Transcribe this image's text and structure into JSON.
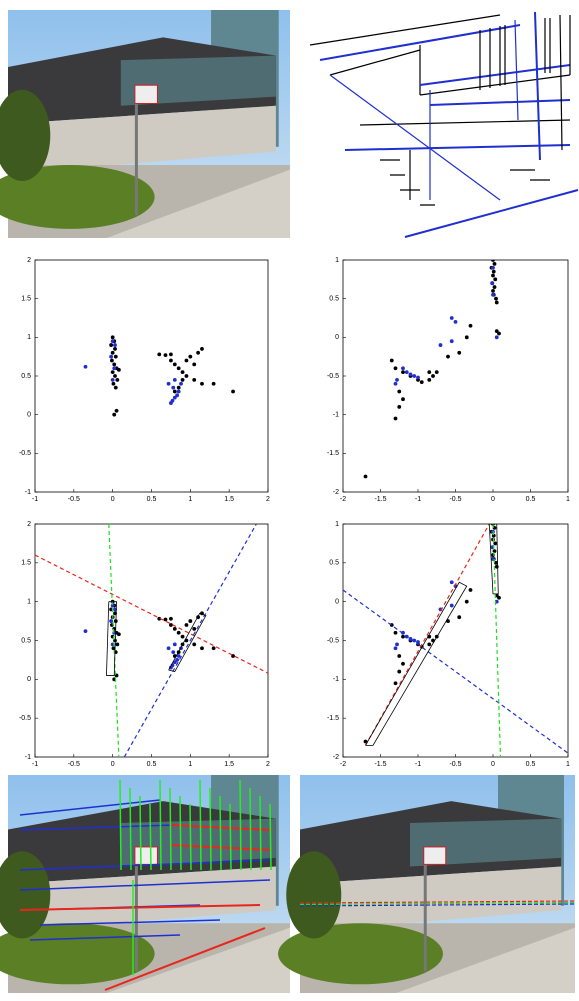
{
  "chart_data": [
    {
      "type": "scatter",
      "xlim": [
        -1,
        2
      ],
      "ylim": [
        -1,
        2
      ],
      "xticks": [
        -1,
        -0.5,
        0,
        0.5,
        1,
        1.5,
        2
      ],
      "yticks": [
        -1,
        -0.5,
        0,
        0.5,
        1,
        1.5,
        2
      ],
      "series": [
        {
          "color": "#000000",
          "mode": "markers",
          "x": [
            0,
            0.02,
            -0.02,
            0.03,
            0,
            0.04,
            -0.01,
            0.02,
            0.05,
            0,
            0.03,
            0.06,
            0.01,
            0.04,
            0.08,
            0.05,
            0.02,
            0.6,
            0.68,
            0.75,
            0.8,
            0.85,
            0.9,
            0.95,
            1.05,
            1.15,
            1.55,
            0.75,
            0.95,
            1.0,
            1.1,
            1.15,
            1.05,
            0.8,
            0.85,
            0.9,
            1.3
          ],
          "y": [
            1.0,
            0.95,
            0.9,
            0.85,
            0.8,
            0.75,
            0.7,
            0.65,
            0.6,
            0.55,
            0.5,
            0.45,
            0.4,
            0.35,
            0.58,
            0.05,
            0.0,
            0.78,
            0.77,
            0.7,
            0.65,
            0.6,
            0.55,
            0.5,
            0.45,
            0.4,
            0.3,
            0.78,
            0.7,
            0.75,
            0.8,
            0.85,
            0.65,
            0.3,
            0.35,
            0.45,
            0.4
          ]
        },
        {
          "color": "#1f2fd0",
          "mode": "markers",
          "x": [
            -0.35,
            0,
            -0.02,
            0.02,
            0,
            0.03,
            0.77,
            0.8,
            0.83,
            0.85,
            0.75,
            0.78,
            0.88,
            0.72,
            0.8
          ],
          "y": [
            0.62,
            0.95,
            0.75,
            0.6,
            0.45,
            0.9,
            0.18,
            0.22,
            0.25,
            0.3,
            0.15,
            0.35,
            0.4,
            0.4,
            0.45
          ]
        }
      ]
    },
    {
      "type": "scatter",
      "xlim": [
        -2,
        1
      ],
      "ylim": [
        -2,
        1
      ],
      "xticks": [
        -2,
        -1.5,
        -1,
        -0.5,
        0,
        0.5,
        1
      ],
      "yticks": [
        -2,
        -1.5,
        -1,
        -0.5,
        0,
        0.5,
        1
      ],
      "series": [
        {
          "color": "#000000",
          "mode": "markers",
          "x": [
            0,
            0.02,
            -0.02,
            0.01,
            0,
            0.03,
            -0.01,
            0.02,
            0,
            0.01,
            0.04,
            0.05,
            0.08,
            0.05,
            -0.3,
            -0.35,
            -0.45,
            -0.6,
            -0.75,
            -0.8,
            -0.85,
            -0.95,
            -1.0,
            -1.1,
            -1.2,
            -1.3,
            -1.35,
            -1.25,
            -1.2,
            -1.25,
            -1.3,
            -1.7,
            -0.85
          ],
          "y": [
            1.0,
            0.95,
            0.9,
            0.85,
            0.8,
            0.75,
            0.7,
            0.65,
            0.6,
            0.55,
            0.5,
            0.45,
            0.05,
            0.08,
            0.15,
            0.0,
            -0.2,
            -0.25,
            -0.45,
            -0.5,
            -0.55,
            -0.58,
            -0.55,
            -0.5,
            -0.45,
            -0.4,
            -0.3,
            -0.7,
            -0.8,
            -0.9,
            -1.05,
            -1.8,
            -0.45
          ]
        },
        {
          "color": "#1f2fd0",
          "mode": "markers",
          "x": [
            0,
            -0.01,
            0,
            -0.5,
            -0.55,
            -0.7,
            -1.15,
            -1.1,
            -1.05,
            -1.0,
            -1.2,
            -1.3,
            -1.28,
            -0.55,
            0.05
          ],
          "y": [
            0.9,
            0.7,
            0.55,
            0.2,
            0.25,
            -0.1,
            -0.45,
            -0.48,
            -0.5,
            -0.52,
            -0.4,
            -0.6,
            -0.55,
            -0.05,
            0.0
          ]
        }
      ]
    },
    {
      "type": "scatter",
      "xlim": [
        -1,
        2
      ],
      "ylim": [
        -1,
        2
      ],
      "xticks": [
        -1,
        -0.5,
        0,
        0.5,
        1,
        1.5,
        2
      ],
      "yticks": [
        -1,
        -0.5,
        0,
        0.5,
        1,
        1.5,
        2
      ],
      "series": [
        {
          "color": "#000000",
          "mode": "markers",
          "x": [
            0,
            0.02,
            -0.02,
            0.03,
            0,
            0.04,
            -0.01,
            0.02,
            0.05,
            0,
            0.03,
            0.06,
            0.01,
            0.04,
            0.08,
            0.05,
            0.02,
            0.6,
            0.68,
            0.75,
            0.8,
            0.85,
            0.9,
            0.95,
            1.05,
            1.15,
            1.55,
            0.75,
            0.95,
            1.0,
            1.1,
            1.15,
            1.05,
            0.8,
            0.85,
            0.9,
            1.3
          ],
          "y": [
            1.0,
            0.95,
            0.9,
            0.85,
            0.8,
            0.75,
            0.7,
            0.65,
            0.6,
            0.55,
            0.5,
            0.45,
            0.4,
            0.35,
            0.58,
            0.05,
            0.0,
            0.78,
            0.77,
            0.7,
            0.65,
            0.6,
            0.55,
            0.5,
            0.45,
            0.4,
            0.3,
            0.78,
            0.7,
            0.75,
            0.8,
            0.85,
            0.65,
            0.3,
            0.35,
            0.45,
            0.4
          ]
        },
        {
          "color": "#1f2fd0",
          "mode": "markers",
          "x": [
            -0.35,
            0,
            -0.02,
            0.02,
            0,
            0.03,
            0.77,
            0.8,
            0.83,
            0.85,
            0.75,
            0.78,
            0.88,
            0.72,
            0.8
          ],
          "y": [
            0.62,
            0.95,
            0.75,
            0.6,
            0.45,
            0.9,
            0.18,
            0.22,
            0.25,
            0.3,
            0.15,
            0.35,
            0.4,
            0.4,
            0.45
          ]
        },
        {
          "color": "#e8261c",
          "mode": "dashed",
          "x": [
            -1,
            2
          ],
          "y": [
            1.6,
            0.08
          ]
        },
        {
          "color": "#22dd22",
          "mode": "dashed",
          "x": [
            -0.05,
            0.08
          ],
          "y": [
            2,
            -1
          ]
        },
        {
          "color": "#1f2fd0",
          "mode": "dashed",
          "x": [
            0.15,
            1.85
          ],
          "y": [
            -1,
            2
          ]
        },
        {
          "color": "#000000",
          "mode": "solid",
          "x": [
            -0.05,
            0.05,
            0.02,
            -0.08,
            -0.05
          ],
          "y": [
            1.0,
            1.0,
            0.05,
            0.05,
            1.0
          ]
        },
        {
          "color": "#000000",
          "mode": "solid",
          "x": [
            0.72,
            0.8,
            1.2,
            1.12,
            0.72
          ],
          "y": [
            0.12,
            0.1,
            0.82,
            0.85,
            0.12
          ]
        }
      ]
    },
    {
      "type": "scatter",
      "xlim": [
        -2,
        1
      ],
      "ylim": [
        -2,
        1
      ],
      "xticks": [
        -2,
        -1.5,
        -1,
        -0.5,
        0,
        0.5,
        1
      ],
      "yticks": [
        -2,
        -1.5,
        -1,
        -0.5,
        0,
        0.5,
        1
      ],
      "series": [
        {
          "color": "#000000",
          "mode": "markers",
          "x": [
            0,
            0.02,
            -0.02,
            0.01,
            0,
            0.03,
            -0.01,
            0.02,
            0,
            0.01,
            0.04,
            0.05,
            0.08,
            0.05,
            -0.3,
            -0.35,
            -0.45,
            -0.6,
            -0.75,
            -0.8,
            -0.85,
            -0.95,
            -1.0,
            -1.1,
            -1.2,
            -1.3,
            -1.35,
            -1.25,
            -1.2,
            -1.25,
            -1.3,
            -1.7,
            -0.85
          ],
          "y": [
            1.0,
            0.95,
            0.9,
            0.85,
            0.8,
            0.75,
            0.7,
            0.65,
            0.6,
            0.55,
            0.5,
            0.45,
            0.05,
            0.08,
            0.15,
            0.0,
            -0.2,
            -0.25,
            -0.45,
            -0.5,
            -0.55,
            -0.58,
            -0.55,
            -0.5,
            -0.45,
            -0.4,
            -0.3,
            -0.7,
            -0.8,
            -0.9,
            -1.05,
            -1.8,
            -0.45
          ]
        },
        {
          "color": "#1f2fd0",
          "mode": "markers",
          "x": [
            0,
            -0.01,
            0,
            -0.5,
            -0.55,
            -0.7,
            -1.15,
            -1.1,
            -1.05,
            -1.0,
            -1.2,
            -1.3,
            -1.28,
            -0.55,
            0.05
          ],
          "y": [
            0.9,
            0.7,
            0.55,
            0.2,
            0.25,
            -0.1,
            -0.45,
            -0.48,
            -0.5,
            -0.52,
            -0.4,
            -0.6,
            -0.55,
            -0.05,
            0.0
          ]
        },
        {
          "color": "#e8261c",
          "mode": "dashed",
          "x": [
            -1.7,
            -0.05
          ],
          "y": [
            -1.85,
            1.0
          ]
        },
        {
          "color": "#1f2fd0",
          "mode": "dashed",
          "x": [
            -2,
            1
          ],
          "y": [
            0.15,
            -1.95
          ]
        },
        {
          "color": "#22dd22",
          "mode": "dashed",
          "x": [
            0,
            0.1
          ],
          "y": [
            1,
            -2
          ]
        },
        {
          "color": "#000000",
          "mode": "solid",
          "x": [
            -1.7,
            -1.6,
            -0.35,
            -0.45,
            -1.7
          ],
          "y": [
            -1.85,
            -1.85,
            0.2,
            0.25,
            -1.85
          ]
        },
        {
          "color": "#000000",
          "mode": "solid",
          "x": [
            -0.05,
            0.05,
            0.07,
            0,
            -0.05
          ],
          "y": [
            1.0,
            1.0,
            0.1,
            0.1,
            1.0
          ]
        }
      ]
    }
  ]
}
